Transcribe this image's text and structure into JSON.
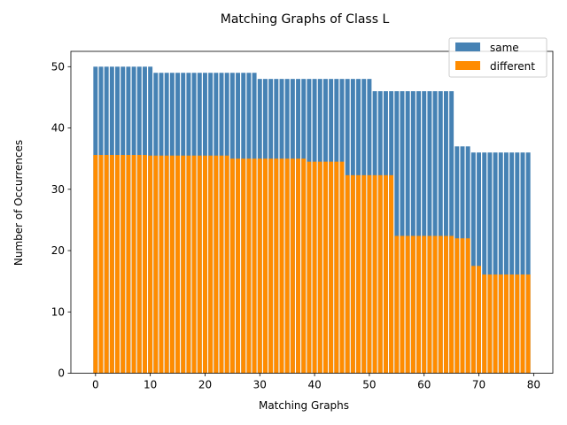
{
  "chart_data": {
    "type": "bar",
    "title": "Matching Graphs of Class L",
    "xlabel": "Matching Graphs",
    "ylabel": "Number of Occurrences",
    "xlim": [
      -4.5,
      83.5
    ],
    "ylim": [
      0,
      52.5
    ],
    "xticks": [
      0,
      10,
      20,
      30,
      40,
      50,
      60,
      70,
      80
    ],
    "yticks": [
      0,
      10,
      20,
      30,
      40,
      50
    ],
    "legend_position": "top-right",
    "x": [
      0,
      1,
      2,
      3,
      4,
      5,
      6,
      7,
      8,
      9,
      10,
      11,
      12,
      13,
      14,
      15,
      16,
      17,
      18,
      19,
      20,
      21,
      22,
      23,
      24,
      25,
      26,
      27,
      28,
      29,
      30,
      31,
      32,
      33,
      34,
      35,
      36,
      37,
      38,
      39,
      40,
      41,
      42,
      43,
      44,
      45,
      46,
      47,
      48,
      49,
      50,
      51,
      52,
      53,
      54,
      55,
      56,
      57,
      58,
      59,
      60,
      61,
      62,
      63,
      64,
      65,
      66,
      67,
      68,
      69,
      70,
      71,
      72,
      73,
      74,
      75,
      76,
      77,
      78,
      79
    ],
    "series": [
      {
        "name": "same",
        "color": "#4682b4",
        "values": [
          50,
          50,
          50,
          50,
          50,
          50,
          50,
          50,
          50,
          50,
          50,
          49,
          49,
          49,
          49,
          49,
          49,
          49,
          49,
          49,
          49,
          49,
          49,
          49,
          49,
          49,
          49,
          49,
          49,
          49,
          48,
          48,
          48,
          48,
          48,
          48,
          48,
          48,
          48,
          48,
          48,
          48,
          48,
          48,
          48,
          48,
          48,
          48,
          48,
          48,
          48,
          46,
          46,
          46,
          46,
          46,
          46,
          46,
          46,
          46,
          46,
          46,
          46,
          46,
          46,
          46,
          37,
          37,
          37,
          36,
          36,
          36,
          36,
          36,
          36,
          36,
          36,
          36,
          36,
          36
        ]
      },
      {
        "name": "different",
        "color": "#ff8c00",
        "values": [
          35.6,
          35.6,
          35.6,
          35.6,
          35.6,
          35.6,
          35.6,
          35.6,
          35.6,
          35.6,
          35.5,
          35.5,
          35.5,
          35.5,
          35.5,
          35.5,
          35.5,
          35.5,
          35.5,
          35.5,
          35.5,
          35.5,
          35.5,
          35.5,
          35.5,
          35.0,
          35.0,
          35.0,
          35.0,
          35.0,
          35.0,
          35.0,
          35.0,
          35.0,
          35.0,
          35.0,
          35.0,
          35.0,
          35.0,
          34.5,
          34.5,
          34.5,
          34.5,
          34.5,
          34.5,
          34.5,
          32.3,
          32.3,
          32.3,
          32.3,
          32.3,
          32.3,
          32.3,
          32.3,
          32.3,
          22.4,
          22.4,
          22.4,
          22.4,
          22.4,
          22.4,
          22.4,
          22.4,
          22.4,
          22.4,
          22.4,
          22.0,
          22.0,
          22.0,
          17.5,
          17.5,
          16.1,
          16.1,
          16.1,
          16.1,
          16.1,
          16.1,
          16.1,
          16.1,
          16.1
        ]
      }
    ]
  }
}
